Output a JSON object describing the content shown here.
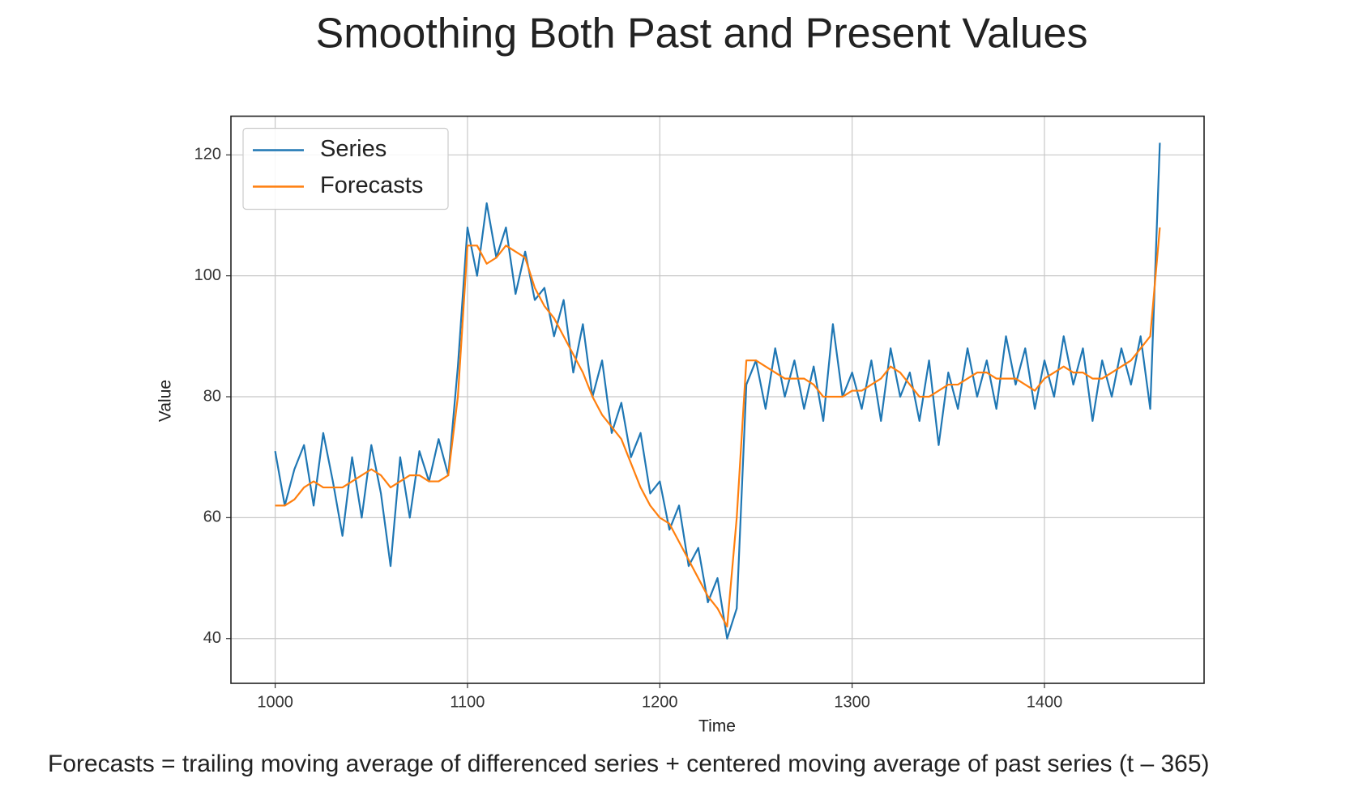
{
  "chart_data": {
    "type": "line",
    "title": "Smoothing Both Past and Present Values",
    "caption": "Forecasts = trailing moving average of differenced series + centered moving average of past series (t – 365)",
    "x_label": "Time",
    "y_label": "Value",
    "xlim": [
      977,
      1483
    ],
    "ylim": [
      32.6,
      126.4
    ],
    "xticks": [
      1000,
      1100,
      1200,
      1300,
      1400
    ],
    "yticks": [
      40,
      60,
      80,
      100,
      120
    ],
    "grid": true,
    "legend": "upper left",
    "x": [
      1000,
      1005,
      1010,
      1015,
      1020,
      1025,
      1030,
      1035,
      1040,
      1045,
      1050,
      1055,
      1060,
      1065,
      1070,
      1075,
      1080,
      1085,
      1090,
      1095,
      1100,
      1105,
      1110,
      1115,
      1120,
      1125,
      1130,
      1135,
      1140,
      1145,
      1150,
      1155,
      1160,
      1165,
      1170,
      1175,
      1180,
      1185,
      1190,
      1195,
      1200,
      1205,
      1210,
      1215,
      1220,
      1225,
      1230,
      1235,
      1240,
      1245,
      1250,
      1255,
      1260,
      1265,
      1270,
      1275,
      1280,
      1285,
      1290,
      1295,
      1300,
      1305,
      1310,
      1315,
      1320,
      1325,
      1330,
      1335,
      1340,
      1345,
      1350,
      1355,
      1360,
      1365,
      1370,
      1375,
      1380,
      1385,
      1390,
      1395,
      1400,
      1405,
      1410,
      1415,
      1420,
      1425,
      1430,
      1435,
      1440,
      1445,
      1450,
      1455,
      1460
    ],
    "series": [
      {
        "name": "Series",
        "color": "#1f77b4",
        "values": [
          71,
          62,
          68,
          72,
          62,
          74,
          66,
          57,
          70,
          60,
          72,
          64,
          52,
          70,
          60,
          71,
          66,
          73,
          67,
          85,
          108,
          100,
          112,
          103,
          108,
          97,
          104,
          96,
          98,
          90,
          96,
          84,
          92,
          80,
          86,
          74,
          79,
          70,
          74,
          64,
          66,
          58,
          62,
          52,
          55,
          46,
          50,
          40,
          45,
          82,
          86,
          78,
          88,
          80,
          86,
          78,
          85,
          76,
          92,
          80,
          84,
          78,
          86,
          76,
          88,
          80,
          84,
          76,
          86,
          72,
          84,
          78,
          88,
          80,
          86,
          78,
          90,
          82,
          88,
          78,
          86,
          80,
          90,
          82,
          88,
          76,
          86,
          80,
          88,
          82,
          90,
          78,
          122
        ]
      },
      {
        "name": "Forecasts",
        "color": "#ff7f0e",
        "values": [
          62,
          62,
          63,
          65,
          66,
          65,
          65,
          65,
          66,
          67,
          68,
          67,
          65,
          66,
          67,
          67,
          66,
          66,
          67,
          80,
          105,
          105,
          102,
          103,
          105,
          104,
          103,
          98,
          95,
          93,
          90,
          87,
          84,
          80,
          77,
          75,
          73,
          69,
          65,
          62,
          60,
          59,
          56,
          53,
          50,
          47,
          45,
          42,
          60,
          86,
          86,
          85,
          84,
          83,
          83,
          83,
          82,
          80,
          80,
          80,
          81,
          81,
          82,
          83,
          85,
          84,
          82,
          80,
          80,
          81,
          82,
          82,
          83,
          84,
          84,
          83,
          83,
          83,
          82,
          81,
          83,
          84,
          85,
          84,
          84,
          83,
          83,
          84,
          85,
          86,
          88,
          90,
          108
        ]
      }
    ]
  }
}
